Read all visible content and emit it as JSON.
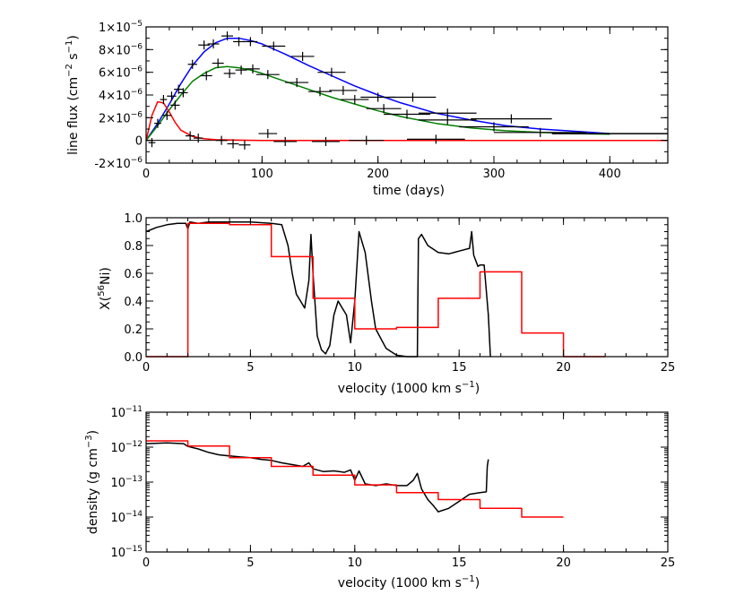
{
  "chart_data": [
    {
      "type": "line",
      "id": "flux",
      "xlabel": "time (days)",
      "ylabel_parts": [
        "line flux (cm",
        "−2",
        " s",
        "−1",
        ")"
      ],
      "xlim": [
        0,
        450
      ],
      "ylim": [
        -2e-06,
        1e-05
      ],
      "xticks": [
        0,
        100,
        200,
        300,
        400
      ],
      "xtick_labels": [
        "0",
        "100",
        "200",
        "300",
        "400"
      ],
      "yticks": [
        {
          "value": 1e-05,
          "mant": "1×10",
          "exp": "−5"
        },
        {
          "value": 8e-06,
          "mant": "8×10",
          "exp": "−6"
        },
        {
          "value": 6e-06,
          "mant": "6×10",
          "exp": "−6"
        },
        {
          "value": 4e-06,
          "mant": "4×10",
          "exp": "−6"
        },
        {
          "value": 2e-06,
          "mant": "2×10",
          "exp": "−6"
        },
        {
          "value": 0,
          "mant": "0",
          "exp": ""
        },
        {
          "value": -2e-06,
          "mant": "-2×10",
          "exp": "−6"
        }
      ],
      "series": [
        {
          "name": "blue model",
          "color": "#0000ff",
          "x": [
            0,
            10,
            20,
            30,
            40,
            50,
            60,
            70,
            80,
            90,
            100,
            120,
            140,
            160,
            180,
            200,
            220,
            250,
            280,
            310,
            340,
            370,
            400
          ],
          "y": [
            0,
            1.5e-06,
            3.2e-06,
            5e-06,
            6.6e-06,
            7.8e-06,
            8.6e-06,
            9e-06,
            9e-06,
            8.8e-06,
            8.5e-06,
            7.6e-06,
            6.6e-06,
            5.7e-06,
            4.8e-06,
            4e-06,
            3.3e-06,
            2.4e-06,
            1.8e-06,
            1.3e-06,
            1e-06,
            8e-07,
            6e-07
          ]
        },
        {
          "name": "green model",
          "color": "#008000",
          "x": [
            0,
            10,
            20,
            30,
            40,
            50,
            60,
            70,
            80,
            90,
            100,
            120,
            140,
            160,
            180,
            200,
            220,
            250,
            280,
            310,
            340,
            370,
            400
          ],
          "y": [
            0,
            1.3e-06,
            2.7e-06,
            4e-06,
            5.2e-06,
            5.9e-06,
            6.4e-06,
            6.5e-06,
            6.4e-06,
            6.2e-06,
            5.9e-06,
            5.2e-06,
            4.5e-06,
            3.8e-06,
            3.2e-06,
            2.6e-06,
            2.1e-06,
            1.5e-06,
            1.1e-06,
            8.5e-07,
            7e-07,
            6e-07,
            5.5e-07
          ]
        },
        {
          "name": "red model",
          "color": "#ff0000",
          "x": [
            0,
            5,
            10,
            15,
            20,
            25,
            30,
            40,
            50,
            60,
            80,
            100,
            150,
            200,
            300,
            450
          ],
          "y": [
            0,
            2.2e-06,
            3.4e-06,
            3.3e-06,
            2.5e-06,
            1.6e-06,
            9e-07,
            3.5e-07,
            1.5e-07,
            6e-08,
            2e-08,
            0,
            0,
            0,
            0,
            0
          ]
        },
        {
          "name": "black baseline",
          "color": "#000000",
          "x": [
            350,
            450
          ],
          "y": [
            6e-07,
            6e-07
          ]
        }
      ],
      "observations": [
        {
          "t": 5,
          "f": -2e-07,
          "dt": 3,
          "df": 4e-07
        },
        {
          "t": 10,
          "f": 1.5e-06,
          "dt": 3,
          "df": 4e-07
        },
        {
          "t": 15,
          "f": 3.6e-06,
          "dt": 3,
          "df": 4e-07
        },
        {
          "t": 18,
          "f": 2.2e-06,
          "dt": 4,
          "df": 4e-07
        },
        {
          "t": 22,
          "f": 3.9e-06,
          "dt": 4,
          "df": 4e-07
        },
        {
          "t": 25,
          "f": 3.1e-06,
          "dt": 4,
          "df": 4e-07
        },
        {
          "t": 28,
          "f": 4.5e-06,
          "dt": 4,
          "df": 4e-07
        },
        {
          "t": 32,
          "f": 4.2e-06,
          "dt": 4,
          "df": 4e-07
        },
        {
          "t": 38,
          "f": 4e-07,
          "dt": 4,
          "df": 4e-07
        },
        {
          "t": 40,
          "f": 6.7e-06,
          "dt": 4,
          "df": 4e-07
        },
        {
          "t": 45,
          "f": 2e-07,
          "dt": 4,
          "df": 4e-07
        },
        {
          "t": 50,
          "f": 8.4e-06,
          "dt": 5,
          "df": 4e-07
        },
        {
          "t": 52,
          "f": 5.7e-06,
          "dt": 5,
          "df": 4e-07
        },
        {
          "t": 58,
          "f": 8.5e-06,
          "dt": 5,
          "df": 4e-07
        },
        {
          "t": 62,
          "f": 6.8e-06,
          "dt": 5,
          "df": 4e-07
        },
        {
          "t": 65,
          "f": 0.0,
          "dt": 5,
          "df": 4e-07
        },
        {
          "t": 70,
          "f": 9.2e-06,
          "dt": 5,
          "df": 4e-07
        },
        {
          "t": 72,
          "f": 5.9e-06,
          "dt": 5,
          "df": 4e-07
        },
        {
          "t": 75,
          "f": -3e-07,
          "dt": 5,
          "df": 4e-07
        },
        {
          "t": 80,
          "f": 8.7e-06,
          "dt": 5,
          "df": 4e-07
        },
        {
          "t": 82,
          "f": 6.2e-06,
          "dt": 5,
          "df": 4e-07
        },
        {
          "t": 85,
          "f": -4e-07,
          "dt": 5,
          "df": 4e-07
        },
        {
          "t": 90,
          "f": 8.7e-06,
          "dt": 6,
          "df": 4e-07
        },
        {
          "t": 92,
          "f": 6.3e-06,
          "dt": 6,
          "df": 4e-07
        },
        {
          "t": 105,
          "f": 6e-07,
          "dt": 8,
          "df": 4e-07
        },
        {
          "t": 105,
          "f": 5.8e-06,
          "dt": 10,
          "df": 4e-07
        },
        {
          "t": 110,
          "f": 8.3e-06,
          "dt": 10,
          "df": 4e-07
        },
        {
          "t": 120,
          "f": -1e-07,
          "dt": 10,
          "df": 4e-07
        },
        {
          "t": 130,
          "f": 5.1e-06,
          "dt": 10,
          "df": 4e-07
        },
        {
          "t": 135,
          "f": 7.4e-06,
          "dt": 10,
          "df": 4e-07
        },
        {
          "t": 150,
          "f": 4.3e-06,
          "dt": 10,
          "df": 4e-07
        },
        {
          "t": 155,
          "f": -1e-07,
          "dt": 12,
          "df": 4e-07
        },
        {
          "t": 160,
          "f": 6e-06,
          "dt": 12,
          "df": 4e-07
        },
        {
          "t": 170,
          "f": 4.4e-06,
          "dt": 12,
          "df": 4e-07
        },
        {
          "t": 180,
          "f": 3.6e-06,
          "dt": 12,
          "df": 4e-07
        },
        {
          "t": 190,
          "f": 0.0,
          "dt": 15,
          "df": 4e-07
        },
        {
          "t": 200,
          "f": 3.8e-06,
          "dt": 15,
          "df": 4e-07
        },
        {
          "t": 205,
          "f": 2.8e-06,
          "dt": 15,
          "df": 4e-07
        },
        {
          "t": 225,
          "f": 2.3e-06,
          "dt": 20,
          "df": 4e-07
        },
        {
          "t": 230,
          "f": 3.8e-06,
          "dt": 20,
          "df": 4e-07
        },
        {
          "t": 250,
          "f": 1e-07,
          "dt": 25,
          "df": 4e-07
        },
        {
          "t": 260,
          "f": 2.4e-06,
          "dt": 25,
          "df": 4e-07
        },
        {
          "t": 260,
          "f": 1.8e-06,
          "dt": 25,
          "df": 4e-07
        },
        {
          "t": 300,
          "f": 1.2e-06,
          "dt": 30,
          "df": 4e-07
        },
        {
          "t": 315,
          "f": 1.9e-06,
          "dt": 35,
          "df": 4e-07
        },
        {
          "t": 340,
          "f": 7e-07,
          "dt": 40,
          "df": 4e-07
        }
      ]
    },
    {
      "type": "line",
      "id": "ni56",
      "xlabel": "velocity (1000 km s−1)",
      "xlabel_parts": [
        "velocity (1000 km s",
        "−1",
        ")"
      ],
      "ylabel_parts": [
        "X(",
        "56",
        "Ni)"
      ],
      "xlim": [
        0,
        25
      ],
      "ylim": [
        0,
        1
      ],
      "xticks": [
        0,
        5,
        10,
        15,
        20,
        25
      ],
      "xtick_labels": [
        "0",
        "5",
        "10",
        "15",
        "20",
        "25"
      ],
      "yticks": [
        0,
        0.2,
        0.4,
        0.6,
        0.8,
        1.0
      ],
      "ytick_labels": [
        "0.0",
        "0.2",
        "0.4",
        "0.6",
        "0.8",
        "1.0"
      ],
      "series": [
        {
          "name": "model profile",
          "color": "#000000",
          "x": [
            0,
            0.5,
            1.0,
            1.5,
            1.9,
            2.0,
            2.1,
            2.5,
            3.0,
            4.0,
            5.0,
            6.0,
            6.5,
            6.8,
            7.0,
            7.2,
            7.4,
            7.6,
            7.8,
            7.9,
            8.0,
            8.2,
            8.4,
            8.6,
            8.8,
            9.0,
            9.2,
            9.4,
            9.6,
            9.8,
            10.0,
            10.2,
            10.5,
            10.8,
            11.0,
            11.5,
            12.0,
            12.5,
            12.8,
            12.9,
            13.0,
            13.05,
            13.2,
            13.5,
            14.0,
            14.5,
            15.0,
            15.5,
            15.6,
            15.7,
            15.9,
            16.0,
            16.2,
            16.4,
            16.5
          ],
          "y": [
            0.9,
            0.93,
            0.95,
            0.96,
            0.96,
            0.92,
            0.97,
            0.96,
            0.97,
            0.97,
            0.97,
            0.96,
            0.95,
            0.8,
            0.6,
            0.45,
            0.4,
            0.35,
            0.55,
            0.88,
            0.6,
            0.15,
            0.05,
            0.02,
            0.08,
            0.3,
            0.4,
            0.35,
            0.3,
            0.1,
            0.4,
            0.9,
            0.75,
            0.4,
            0.2,
            0.06,
            0.01,
            0.0,
            0.0,
            0.0,
            0.0,
            0.85,
            0.88,
            0.8,
            0.75,
            0.74,
            0.76,
            0.78,
            0.9,
            0.73,
            0.65,
            0.66,
            0.66,
            0.3,
            0.0
          ]
        },
        {
          "name": "binned (red)",
          "color": "#ff0000",
          "step": true,
          "edges": [
            0,
            2,
            4,
            6,
            8,
            10,
            12,
            14,
            16,
            18,
            20,
            22
          ],
          "values": [
            0,
            0.96,
            0.95,
            0.72,
            0.42,
            0.2,
            0.21,
            0.42,
            0.61,
            0.17,
            0
          ]
        }
      ]
    },
    {
      "type": "line",
      "id": "density",
      "xlabel": "velocity (1000 km s−1)",
      "xlabel_parts": [
        "velocity (1000 km s",
        "−1",
        ")"
      ],
      "ylabel_parts": [
        "density (g cm",
        "−3",
        ")"
      ],
      "yscale": "log",
      "xlim": [
        0,
        25
      ],
      "ylim_log10": [
        -15,
        -11
      ],
      "xticks": [
        0,
        5,
        10,
        15,
        20,
        25
      ],
      "xtick_labels": [
        "0",
        "5",
        "10",
        "15",
        "20",
        "25"
      ],
      "yticks": [
        {
          "exp10": -11,
          "mant": "10",
          "exp": "−11"
        },
        {
          "exp10": -12,
          "mant": "10",
          "exp": "−12"
        },
        {
          "exp10": -13,
          "mant": "10",
          "exp": "−13"
        },
        {
          "exp10": -14,
          "mant": "10",
          "exp": "−14"
        },
        {
          "exp10": -15,
          "mant": "10",
          "exp": "−15"
        }
      ],
      "series": [
        {
          "name": "model profile",
          "color": "#000000",
          "x": [
            0,
            1.0,
            1.8,
            2.0,
            2.5,
            3.0,
            3.5,
            4.0,
            4.5,
            5.0,
            5.5,
            6.0,
            6.5,
            7.0,
            7.5,
            7.8,
            8.0,
            8.5,
            9.0,
            9.5,
            9.8,
            10.0,
            10.2,
            10.5,
            11.0,
            11.5,
            12.0,
            12.5,
            12.8,
            13.0,
            13.2,
            13.5,
            13.8,
            14.0,
            14.5,
            15.0,
            15.5,
            16.0,
            16.3,
            16.35,
            16.4
          ],
          "y_log10": [
            -11.9,
            -11.88,
            -11.9,
            -11.98,
            -12.05,
            -12.15,
            -12.22,
            -12.25,
            -12.28,
            -12.3,
            -12.35,
            -12.38,
            -12.45,
            -12.5,
            -12.55,
            -12.45,
            -12.62,
            -12.7,
            -12.68,
            -12.72,
            -12.65,
            -12.95,
            -12.68,
            -13.05,
            -13.1,
            -13.05,
            -13.1,
            -13.1,
            -12.95,
            -12.75,
            -13.2,
            -13.5,
            -13.7,
            -13.85,
            -13.75,
            -13.55,
            -13.35,
            -13.3,
            -13.28,
            -12.55,
            -12.35
          ]
        },
        {
          "name": "binned (red)",
          "color": "#ff0000",
          "step": true,
          "edges": [
            0,
            2,
            4,
            6,
            8,
            10,
            12,
            14,
            16,
            18,
            20
          ],
          "values_log10": [
            -11.82,
            -11.97,
            -12.3,
            -12.55,
            -12.8,
            -13.08,
            -13.3,
            -13.5,
            -13.75,
            -14.0
          ]
        }
      ]
    }
  ]
}
